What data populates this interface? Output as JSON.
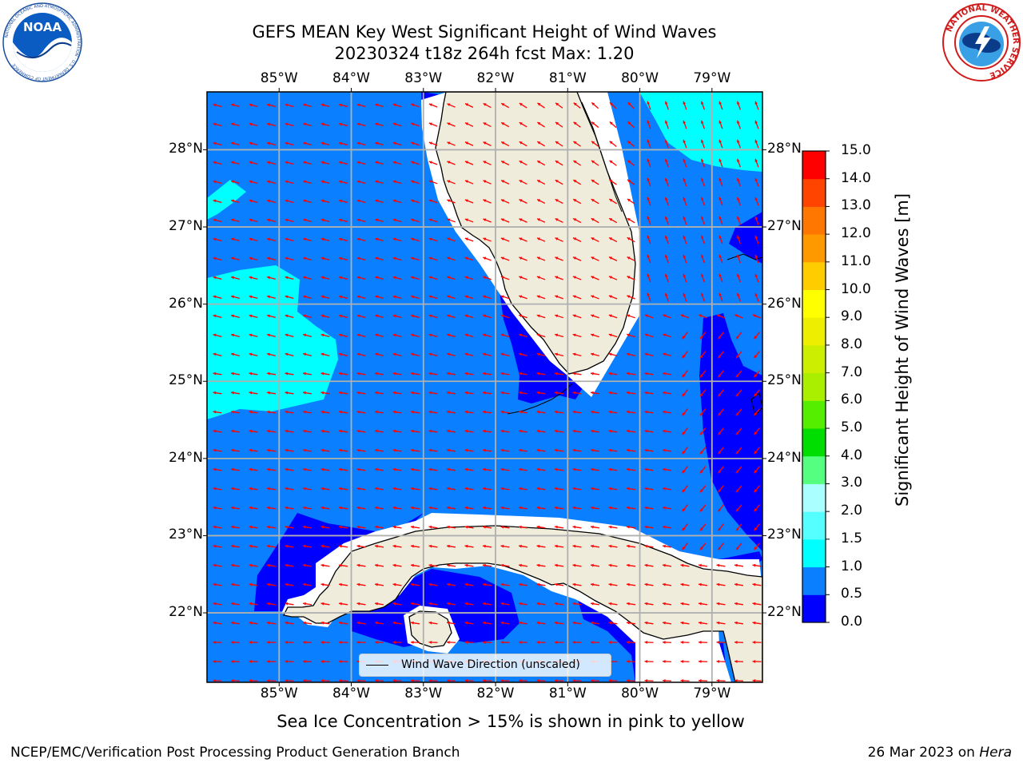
{
  "header": {
    "title_line1": "GEFS MEAN Key West Significant Height of Wind Waves",
    "title_line2": "20230324 t18z 264h fcst   Max: 1.20"
  },
  "logos": {
    "noaa_text": "NOAA",
    "noaa_ring_text": "NATIONAL OCEANIC AND ATMOSPHERIC ADMINISTRATION · U.S. DEPARTMENT OF COMMERCE",
    "nws_ring_text": "NATIONAL WEATHER SERVICE"
  },
  "map": {
    "lon_labels": [
      "85°W",
      "84°W",
      "83°W",
      "82°W",
      "81°W",
      "80°W",
      "79°W"
    ],
    "lat_labels": [
      "28°N",
      "27°N",
      "26°N",
      "25°N",
      "24°N",
      "23°N",
      "22°N"
    ],
    "lon_range": [
      -86.0,
      -78.3
    ],
    "lat_range": [
      21.1,
      28.75
    ],
    "legend_label": "Wind Wave Direction (unscaled)",
    "colors": {
      "land": "#efecdc",
      "band_0_0p5": "#0000ff",
      "band_0p5_1": "#0a7fff",
      "band_1_1p5": "#00ffff",
      "coast": "#000000",
      "grid": "#b0b0b0",
      "arrow": "#ff0000"
    }
  },
  "colorbar": {
    "label": "Significant Height of Wind Waves [m]",
    "tick_labels": [
      "0.0",
      "0.5",
      "1.0",
      "1.5",
      "2.0",
      "3.0",
      "4.0",
      "5.0",
      "6.0",
      "7.0",
      "8.0",
      "9.0",
      "10.0",
      "11.0",
      "12.0",
      "13.0",
      "14.0",
      "15.0"
    ],
    "colors": [
      "#0000ff",
      "#0a7fff",
      "#00ffff",
      "#55ffff",
      "#aaffff",
      "#55ff7f",
      "#00dd00",
      "#55ee00",
      "#aaee00",
      "#ccee00",
      "#eeee00",
      "#ffff00",
      "#ffcc00",
      "#ff9900",
      "#ff7700",
      "#ff4400",
      "#ff0000"
    ]
  },
  "footer": {
    "sea_ice_note": "Sea Ice Concentration > 15% is shown in pink to yellow",
    "left": "NCEP/EMC/Verification Post Processing Product Generation Branch",
    "right_prefix": "26 Mar 2023 on ",
    "right_host": "Hera"
  }
}
